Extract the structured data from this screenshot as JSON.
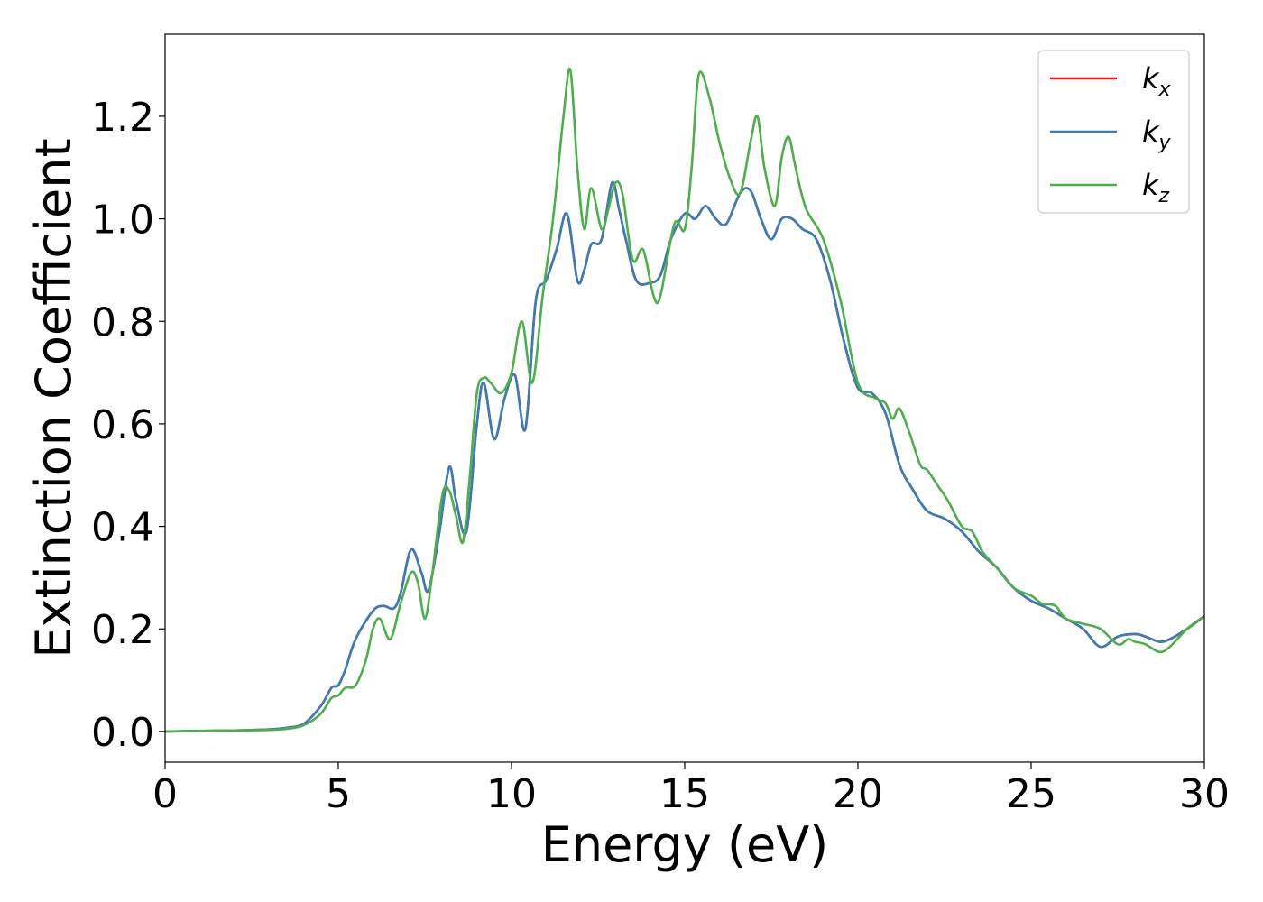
{
  "chart_data": {
    "type": "line",
    "title": "",
    "xlabel": "Energy (eV)",
    "ylabel": "Extinction Coefficient",
    "xlim": [
      0,
      30
    ],
    "ylim": [
      -0.06,
      1.36
    ],
    "xticks": [
      0,
      5,
      10,
      15,
      20,
      25,
      30
    ],
    "yticks": [
      0.0,
      0.2,
      0.4,
      0.6,
      0.8,
      1.0,
      1.2
    ],
    "xtick_labels": [
      "0",
      "5",
      "10",
      "15",
      "20",
      "25",
      "30"
    ],
    "ytick_labels": [
      "0.0",
      "0.2",
      "0.4",
      "0.6",
      "0.8",
      "1.0",
      "1.2"
    ],
    "grid": false,
    "legend_position": "top-right",
    "series": [
      {
        "name": "k_x",
        "legend_base": "k",
        "legend_sub": "x",
        "color": "#e41a1c",
        "x": [
          0,
          1,
          2,
          3,
          3.5,
          4,
          4.5,
          4.8,
          5,
          5.2,
          5.5,
          6,
          6.3,
          6.6,
          6.8,
          7.1,
          7.4,
          7.6,
          7.9,
          8.2,
          8.4,
          8.7,
          9,
          9.2,
          9.5,
          9.8,
          10.1,
          10.4,
          10.7,
          11,
          11.3,
          11.6,
          11.9,
          12.1,
          12.3,
          12.6,
          12.9,
          13.1,
          13.3,
          13.6,
          14,
          14.3,
          14.6,
          15,
          15.3,
          15.6,
          15.9,
          16.2,
          16.6,
          16.9,
          17.2,
          17.5,
          17.8,
          18.1,
          18.4,
          18.8,
          19.2,
          19.6,
          20,
          20.4,
          20.8,
          21.2,
          21.6,
          22,
          22.5,
          23,
          23.5,
          24,
          24.5,
          25,
          25.5,
          26,
          26.5,
          27,
          27.5,
          28,
          28.3,
          28.7,
          29,
          29.5,
          30
        ],
        "y": [
          0,
          0.001,
          0.002,
          0.004,
          0.007,
          0.015,
          0.05,
          0.085,
          0.09,
          0.12,
          0.18,
          0.235,
          0.245,
          0.24,
          0.27,
          0.355,
          0.31,
          0.275,
          0.38,
          0.515,
          0.45,
          0.39,
          0.6,
          0.68,
          0.57,
          0.65,
          0.695,
          0.59,
          0.84,
          0.88,
          0.94,
          1.01,
          0.88,
          0.9,
          0.95,
          0.96,
          1.07,
          1.02,
          0.96,
          0.88,
          0.875,
          0.89,
          0.96,
          1.01,
          1.0,
          1.025,
          1.0,
          0.99,
          1.05,
          1.055,
          1.0,
          0.96,
          1.0,
          1.0,
          0.98,
          0.96,
          0.88,
          0.76,
          0.67,
          0.66,
          0.62,
          0.52,
          0.47,
          0.43,
          0.415,
          0.39,
          0.35,
          0.32,
          0.28,
          0.255,
          0.24,
          0.22,
          0.2,
          0.165,
          0.185,
          0.19,
          0.185,
          0.175,
          0.18,
          0.2,
          0.225
        ]
      },
      {
        "name": "k_y",
        "legend_base": "k",
        "legend_sub": "y",
        "color": "#377eb8",
        "x": [
          0,
          1,
          2,
          3,
          3.5,
          4,
          4.5,
          4.8,
          5,
          5.2,
          5.5,
          6,
          6.3,
          6.6,
          6.8,
          7.1,
          7.4,
          7.6,
          7.9,
          8.2,
          8.4,
          8.7,
          9,
          9.2,
          9.5,
          9.8,
          10.1,
          10.4,
          10.7,
          11,
          11.3,
          11.6,
          11.9,
          12.1,
          12.3,
          12.6,
          12.9,
          13.1,
          13.3,
          13.6,
          14,
          14.3,
          14.6,
          15,
          15.3,
          15.6,
          15.9,
          16.2,
          16.6,
          16.9,
          17.2,
          17.5,
          17.8,
          18.1,
          18.4,
          18.8,
          19.2,
          19.6,
          20,
          20.4,
          20.8,
          21.2,
          21.6,
          22,
          22.5,
          23,
          23.5,
          24,
          24.5,
          25,
          25.5,
          26,
          26.5,
          27,
          27.5,
          28,
          28.3,
          28.7,
          29,
          29.5,
          30
        ],
        "y": [
          0,
          0.001,
          0.002,
          0.004,
          0.007,
          0.015,
          0.05,
          0.085,
          0.09,
          0.12,
          0.18,
          0.235,
          0.245,
          0.24,
          0.27,
          0.355,
          0.31,
          0.275,
          0.38,
          0.515,
          0.45,
          0.39,
          0.6,
          0.68,
          0.57,
          0.65,
          0.695,
          0.59,
          0.84,
          0.88,
          0.94,
          1.01,
          0.88,
          0.9,
          0.95,
          0.96,
          1.07,
          1.02,
          0.96,
          0.88,
          0.875,
          0.89,
          0.96,
          1.01,
          1.0,
          1.025,
          1.0,
          0.99,
          1.05,
          1.055,
          1.0,
          0.96,
          1.0,
          1.0,
          0.98,
          0.96,
          0.88,
          0.76,
          0.67,
          0.66,
          0.62,
          0.52,
          0.47,
          0.43,
          0.415,
          0.39,
          0.35,
          0.32,
          0.28,
          0.255,
          0.24,
          0.22,
          0.2,
          0.165,
          0.185,
          0.19,
          0.185,
          0.175,
          0.18,
          0.2,
          0.225
        ]
      },
      {
        "name": "k_z",
        "legend_base": "k",
        "legend_sub": "z",
        "color": "#4daf4a",
        "x": [
          0,
          1,
          2,
          3,
          3.5,
          4,
          4.5,
          4.8,
          5,
          5.2,
          5.5,
          5.8,
          6,
          6.2,
          6.5,
          6.8,
          7.1,
          7.3,
          7.5,
          7.7,
          8,
          8.2,
          8.4,
          8.6,
          8.8,
          9,
          9.2,
          9.4,
          9.7,
          10,
          10.3,
          10.6,
          10.9,
          11.2,
          11.5,
          11.7,
          11.9,
          12.1,
          12.3,
          12.6,
          12.8,
          13,
          13.2,
          13.5,
          13.8,
          14.1,
          14.3,
          14.7,
          15,
          15.2,
          15.4,
          15.7,
          16,
          16.3,
          16.6,
          16.9,
          17.1,
          17.3,
          17.6,
          17.8,
          18,
          18.2,
          18.5,
          19,
          19.5,
          20,
          20.5,
          20.8,
          21,
          21.2,
          21.5,
          21.8,
          22,
          22.3,
          22.6,
          23,
          23.3,
          23.6,
          24,
          24.5,
          25,
          25.3,
          25.7,
          26,
          26.5,
          27,
          27.5,
          27.8,
          28,
          28.3,
          28.7,
          29,
          29.5,
          30
        ],
        "y": [
          0,
          0.001,
          0.002,
          0.003,
          0.005,
          0.012,
          0.035,
          0.065,
          0.07,
          0.085,
          0.09,
          0.14,
          0.2,
          0.22,
          0.18,
          0.25,
          0.31,
          0.29,
          0.22,
          0.3,
          0.46,
          0.47,
          0.42,
          0.37,
          0.5,
          0.66,
          0.69,
          0.68,
          0.66,
          0.7,
          0.8,
          0.68,
          0.85,
          1.0,
          1.2,
          1.29,
          1.1,
          0.98,
          1.06,
          0.98,
          1.02,
          1.07,
          1.05,
          0.92,
          0.94,
          0.85,
          0.85,
          0.99,
          0.98,
          1.1,
          1.28,
          1.24,
          1.15,
          1.08,
          1.05,
          1.15,
          1.2,
          1.1,
          1.025,
          1.12,
          1.16,
          1.1,
          1.02,
          0.96,
          0.84,
          0.68,
          0.65,
          0.64,
          0.61,
          0.63,
          0.58,
          0.52,
          0.51,
          0.48,
          0.45,
          0.4,
          0.39,
          0.35,
          0.32,
          0.28,
          0.265,
          0.25,
          0.245,
          0.22,
          0.21,
          0.2,
          0.17,
          0.18,
          0.175,
          0.17,
          0.155,
          0.165,
          0.2,
          0.225
        ]
      }
    ]
  }
}
